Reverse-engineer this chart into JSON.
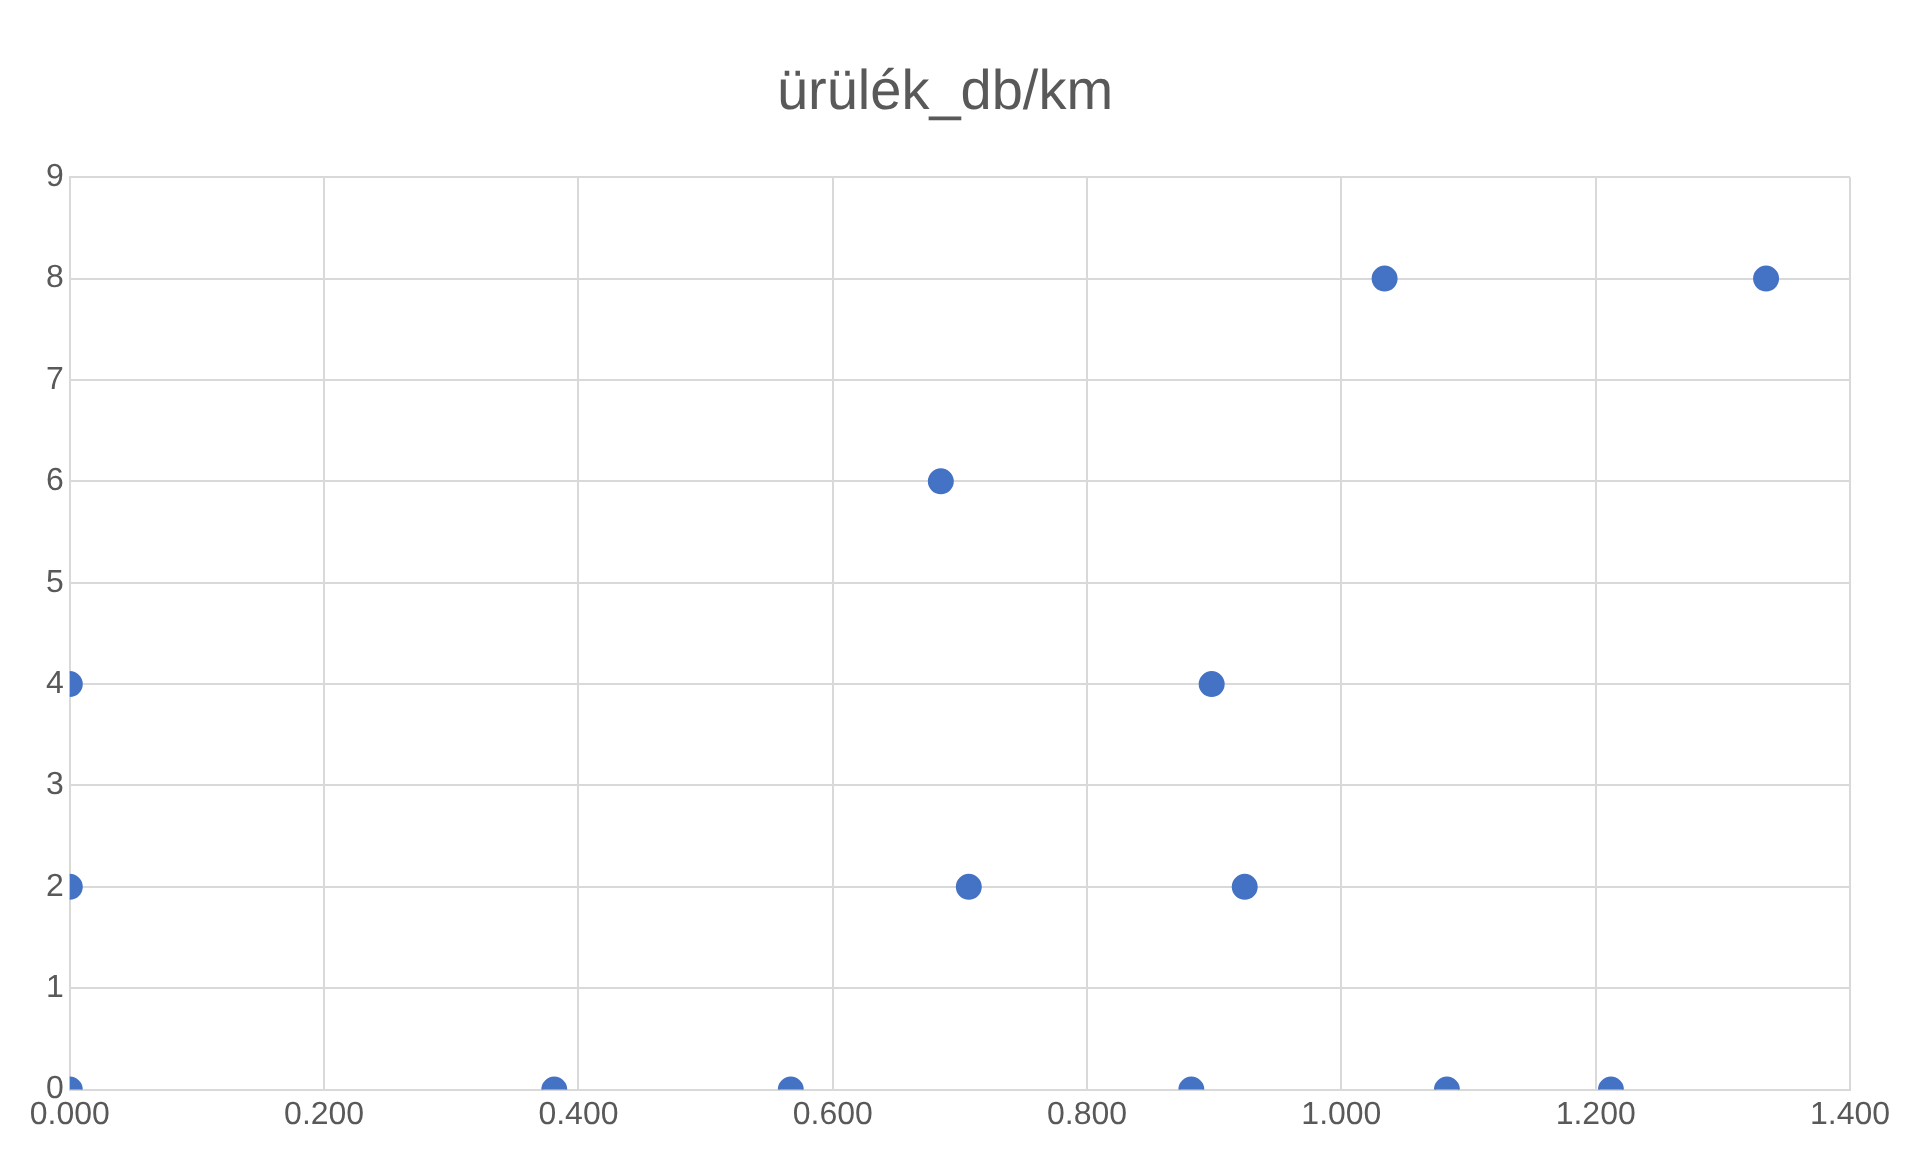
{
  "chart_data": {
    "type": "scatter",
    "title": "ürülék_db/km",
    "x": [
      0,
      0,
      0,
      0.381,
      0.567,
      0.685,
      0.707,
      0.882,
      0.898,
      0.924,
      1.034,
      1.083,
      1.212,
      1.334
    ],
    "values": [
      0,
      2,
      4,
      0,
      0,
      6,
      2,
      0,
      4,
      2,
      8,
      0,
      0,
      8
    ],
    "color": "#4472c4",
    "marker": "circle",
    "xlim": [
      0,
      1.4
    ],
    "xticks": [
      {
        "value": 0,
        "label": "0.000"
      },
      {
        "value": 0.2,
        "label": "0.200"
      },
      {
        "value": 0.4,
        "label": "0.400"
      },
      {
        "value": 0.6,
        "label": "0.600"
      },
      {
        "value": 0.8,
        "label": "0.800"
      },
      {
        "value": 1,
        "label": "1.000"
      },
      {
        "value": 1.2,
        "label": "1.200"
      },
      {
        "value": 1.4,
        "label": "1.400"
      }
    ],
    "ylim": [
      0,
      9
    ],
    "yticks": [
      0,
      1,
      2,
      3,
      4,
      5,
      6,
      7,
      8,
      9
    ],
    "grid": true,
    "legend": false
  }
}
